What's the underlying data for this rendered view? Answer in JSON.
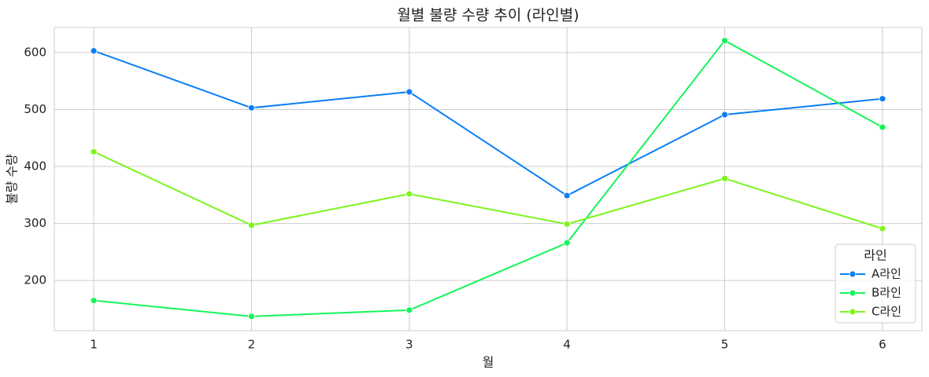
{
  "chart_data": {
    "type": "line",
    "title": "월별 불량 수량 추이 (라인별)",
    "x_label": "월",
    "y_label": "불량 수량",
    "x": [
      1,
      2,
      3,
      4,
      5,
      6
    ],
    "series": [
      {
        "name": "A라인",
        "color": "#0a7ff5",
        "values": [
          603,
          503,
          531,
          349,
          491,
          519
        ]
      },
      {
        "name": "B라인",
        "color": "#14f55a",
        "values": [
          165,
          137,
          148,
          266,
          621,
          469
        ]
      },
      {
        "name": "C라인",
        "color": "#7cf51c",
        "values": [
          426,
          297,
          352,
          299,
          379,
          291
        ]
      }
    ],
    "legend_title": "라인",
    "legend_position": "lower right",
    "xlim": [
      0.75,
      6.25
    ],
    "xticks": [
      1,
      2,
      3,
      4,
      5,
      6
    ],
    "ylim": [
      112,
      644
    ],
    "yticks": [
      200,
      300,
      400,
      500,
      600
    ],
    "grid": true
  }
}
